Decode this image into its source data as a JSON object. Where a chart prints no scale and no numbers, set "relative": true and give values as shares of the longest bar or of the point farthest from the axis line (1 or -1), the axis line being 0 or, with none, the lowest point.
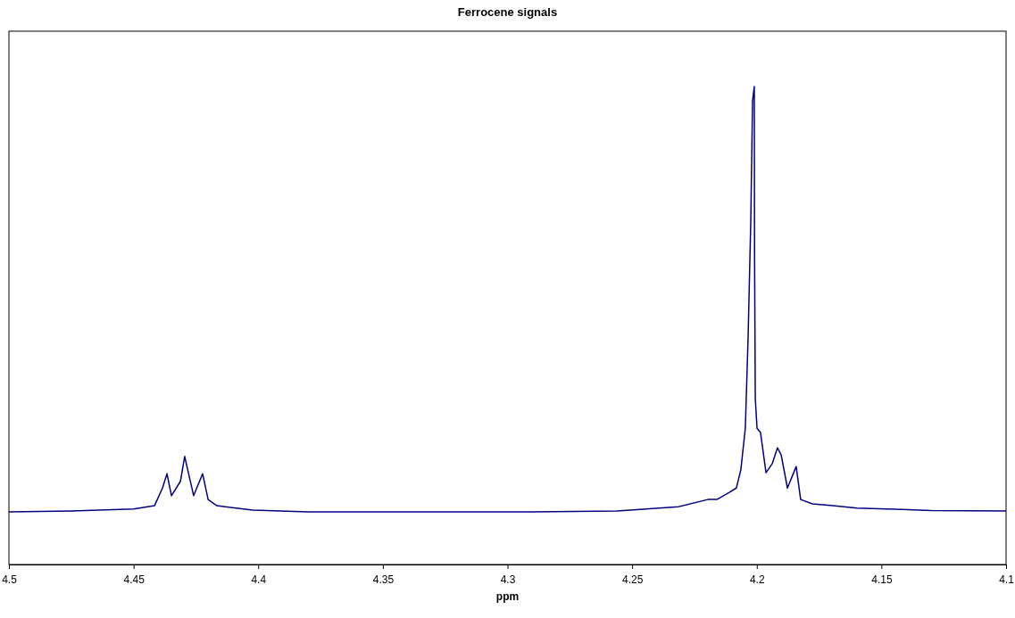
{
  "chart_data": {
    "type": "line",
    "title": "Ferrocene signals",
    "xlabel": "ppm",
    "relative": true,
    "xlim": [
      4.5,
      4.1
    ],
    "xticks": [
      4.5,
      4.45,
      4.4,
      4.35,
      4.3,
      4.25,
      4.2,
      4.15,
      4.1
    ],
    "grid": false,
    "marker": "none",
    "line_style": "solid",
    "series": [
      {
        "color": "#000080",
        "x": [
          4.5,
          4.475,
          4.4499,
          4.4416,
          4.4384,
          4.4366,
          4.4348,
          4.4312,
          4.4295,
          4.4259,
          4.4223,
          4.4201,
          4.4166,
          4.4022,
          4.38,
          4.35,
          4.32,
          4.29,
          4.256,
          4.2314,
          4.2196,
          4.216,
          4.211,
          4.2082,
          4.2064,
          4.2046,
          4.2035,
          4.2024,
          4.2017,
          4.201,
          4.2009,
          4.2006,
          4.1999,
          4.1985,
          4.1963,
          4.1938,
          4.1917,
          4.1902,
          4.1877,
          4.1842,
          4.1824,
          4.1777,
          4.1695,
          4.1598,
          4.13,
          4.1
        ],
        "values": [
          0.11,
          0.112,
          0.116,
          0.123,
          0.16,
          0.19,
          0.144,
          0.174,
          0.226,
          0.144,
          0.19,
          0.136,
          0.123,
          0.114,
          0.11,
          0.11,
          0.11,
          0.11,
          0.112,
          0.121,
          0.136,
          0.136,
          0.151,
          0.16,
          0.198,
          0.285,
          0.472,
          0.72,
          0.97,
          1.0,
          0.659,
          0.347,
          0.285,
          0.276,
          0.192,
          0.211,
          0.244,
          0.229,
          0.16,
          0.205,
          0.136,
          0.127,
          0.123,
          0.118,
          0.113,
          0.112
        ]
      }
    ]
  }
}
